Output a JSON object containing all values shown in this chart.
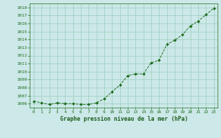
{
  "x": [
    0,
    1,
    2,
    3,
    4,
    5,
    6,
    7,
    8,
    9,
    10,
    11,
    12,
    13,
    14,
    15,
    16,
    17,
    18,
    19,
    20,
    21,
    22,
    23
  ],
  "y": [
    1006.3,
    1006.1,
    1005.9,
    1006.1,
    1006.0,
    1006.0,
    1005.9,
    1005.9,
    1006.1,
    1006.6,
    1007.5,
    1008.3,
    1009.5,
    1009.7,
    1009.7,
    1011.1,
    1011.4,
    1013.4,
    1013.9,
    1014.6,
    1015.7,
    1016.3,
    1017.1,
    1017.9
  ],
  "line_color": "#1a6b1a",
  "marker_color": "#1a6b1a",
  "bg_color": "#cce8e8",
  "grid_color": "#99ccbb",
  "xlabel": "Graphe pression niveau de la mer (hPa)",
  "xlabel_color": "#1a5c1a",
  "tick_color": "#1a6b1a",
  "ylim_min": 1005.5,
  "ylim_max": 1018.5,
  "yticks": [
    1006,
    1007,
    1008,
    1009,
    1010,
    1011,
    1012,
    1013,
    1014,
    1015,
    1016,
    1017,
    1018
  ],
  "xticks": [
    0,
    1,
    2,
    3,
    4,
    5,
    6,
    7,
    8,
    9,
    10,
    11,
    12,
    13,
    14,
    15,
    16,
    17,
    18,
    19,
    20,
    21,
    22,
    23
  ],
  "tick_fontsize": 4.5,
  "xlabel_fontsize": 5.8
}
